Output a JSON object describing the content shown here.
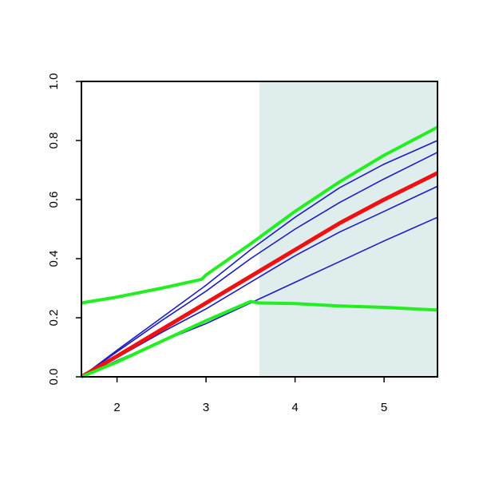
{
  "chart_data": {
    "type": "line",
    "xlim": [
      1.6,
      5.6
    ],
    "ylim": [
      0,
      1
    ],
    "xticks": [
      2,
      3,
      4,
      5
    ],
    "yticks": [
      {
        "value": 0,
        "label": "0.0"
      },
      0.2,
      0.4,
      0.6,
      0.8,
      {
        "value": 1,
        "label": "1.0"
      }
    ],
    "grid": false,
    "shaded_region": {
      "x": [
        3.6,
        5.6
      ],
      "color": "#e0eded"
    },
    "series": [
      {
        "color": "#1c1cc4",
        "width": 1.6,
        "x": [
          1.6,
          2,
          2.5,
          3,
          3.5,
          4,
          4.5,
          5,
          5.6
        ],
        "values": [
          0,
          0.09,
          0.2,
          0.31,
          0.43,
          0.54,
          0.64,
          0.72,
          0.8
        ]
      },
      {
        "color": "#1c1cc4",
        "width": 1.6,
        "x": [
          1.6,
          2,
          2.5,
          3,
          3.5,
          4,
          4.5,
          5,
          5.6
        ],
        "values": [
          0,
          0.085,
          0.19,
          0.29,
          0.4,
          0.5,
          0.59,
          0.67,
          0.76
        ]
      },
      {
        "color": "#1c1cc4",
        "width": 1.6,
        "x": [
          1.6,
          2,
          2.5,
          3,
          3.5,
          4,
          4.5,
          5,
          5.6
        ],
        "values": [
          0,
          0.065,
          0.15,
          0.23,
          0.32,
          0.41,
          0.49,
          0.56,
          0.645
        ]
      },
      {
        "color": "#1c1cc4",
        "width": 1.6,
        "x": [
          1.6,
          2,
          2.5,
          3,
          3.5,
          4,
          4.5,
          5,
          5.6
        ],
        "values": [
          0,
          0.055,
          0.12,
          0.18,
          0.25,
          0.32,
          0.39,
          0.46,
          0.54
        ]
      },
      {
        "color": "#ee1111",
        "width": 5,
        "x": [
          1.6,
          2,
          2.5,
          3,
          3.5,
          4,
          4.5,
          5,
          5.6
        ],
        "values": [
          0,
          0.07,
          0.16,
          0.25,
          0.34,
          0.43,
          0.52,
          0.6,
          0.69
        ]
      },
      {
        "color": "#22ee22",
        "width": 4,
        "x": [
          1.6,
          2,
          2.5,
          2.95,
          3,
          3.5,
          4,
          4.5,
          5,
          5.6
        ],
        "values": [
          0.25,
          0.27,
          0.3,
          0.33,
          0.345,
          0.45,
          0.56,
          0.66,
          0.75,
          0.845
        ]
      },
      {
        "color": "#22ee22",
        "width": 4,
        "x": [
          1.6,
          2,
          2.5,
          3,
          3.5,
          3.6,
          4,
          4.5,
          5,
          5.6
        ],
        "values": [
          0,
          0.05,
          0.12,
          0.19,
          0.255,
          0.25,
          0.248,
          0.24,
          0.235,
          0.226
        ]
      }
    ]
  }
}
